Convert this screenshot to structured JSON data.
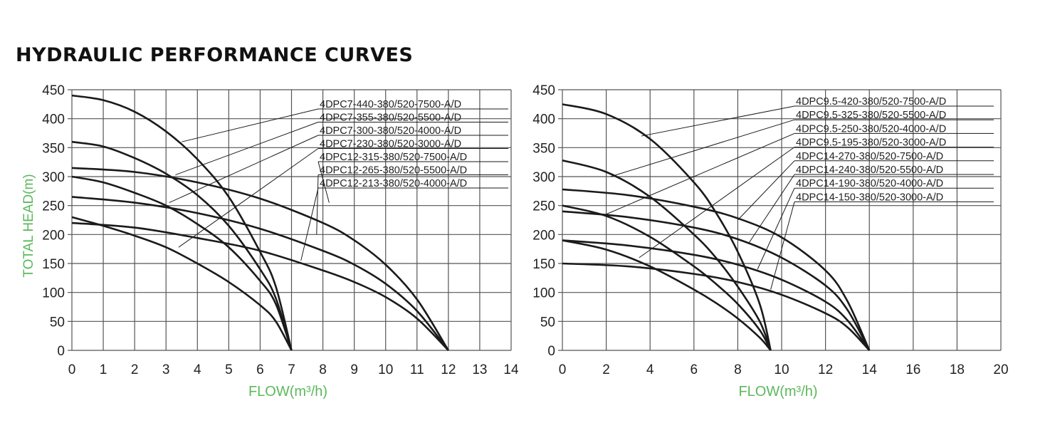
{
  "page": {
    "title": "HYDRAULIC PERFORMANCE CURVES"
  },
  "colors": {
    "axis_label": "#5cb85c",
    "grid": "#555555",
    "curve": "#1a1a1a",
    "text": "#222222"
  },
  "chart_data": [
    {
      "type": "line",
      "xlabel": "FLOW(m³/h)",
      "ylabel": "TOTAL HEAD(m)",
      "xlim": [
        0,
        14
      ],
      "ylim": [
        0,
        450
      ],
      "xticks": [
        0,
        1,
        2,
        3,
        4,
        5,
        6,
        7,
        8,
        9,
        10,
        11,
        12,
        13,
        14
      ],
      "yticks": [
        0,
        50,
        100,
        150,
        200,
        250,
        300,
        350,
        400,
        450
      ],
      "grid": true,
      "legend_position": "top-right",
      "series": [
        {
          "name": "4DPC7-440-380/520-7500-A/D",
          "shutoff_head": 440,
          "max_flow": 7,
          "points": [
            [
              0,
              440
            ],
            [
              1,
              432
            ],
            [
              2,
              412
            ],
            [
              3,
              378
            ],
            [
              4,
              330
            ],
            [
              5,
              265
            ],
            [
              6,
              170
            ],
            [
              6.5,
              110
            ],
            [
              7,
              0
            ]
          ],
          "pointer": [
            3.5,
            360
          ]
        },
        {
          "name": "4DPC7-355-380/520-5500-A/D",
          "shutoff_head": 360,
          "max_flow": 7,
          "points": [
            [
              0,
              360
            ],
            [
              1,
              352
            ],
            [
              2,
              332
            ],
            [
              3,
              305
            ],
            [
              4,
              268
            ],
            [
              5,
              215
            ],
            [
              6,
              140
            ],
            [
              6.5,
              90
            ],
            [
              7,
              0
            ]
          ],
          "pointer": [
            3.3,
            303
          ]
        },
        {
          "name": "4DPC7-300-380/520-4000-A/D",
          "shutoff_head": 300,
          "max_flow": 7,
          "points": [
            [
              0,
              300
            ],
            [
              1,
              290
            ],
            [
              2,
              272
            ],
            [
              3,
              250
            ],
            [
              4,
              218
            ],
            [
              5,
              178
            ],
            [
              6,
              120
            ],
            [
              6.5,
              80
            ],
            [
              7,
              0
            ]
          ],
          "pointer": [
            3.1,
            255
          ]
        },
        {
          "name": "4DPC7-230-380/520-3000-A/D",
          "shutoff_head": 230,
          "max_flow": 7,
          "points": [
            [
              0,
              230
            ],
            [
              1,
              215
            ],
            [
              2,
              198
            ],
            [
              3,
              178
            ],
            [
              4,
              150
            ],
            [
              5,
              118
            ],
            [
              6,
              78
            ],
            [
              6.5,
              50
            ],
            [
              7,
              0
            ]
          ],
          "pointer": [
            3.4,
            178
          ]
        },
        {
          "name": "4DPC12-315-380/520-7500-A/D",
          "shutoff_head": 315,
          "max_flow": 12,
          "points": [
            [
              0,
              315
            ],
            [
              2,
              308
            ],
            [
              4,
              290
            ],
            [
              6,
              262
            ],
            [
              8,
              220
            ],
            [
              9,
              190
            ],
            [
              10,
              148
            ],
            [
              11,
              88
            ],
            [
              12,
              0
            ]
          ],
          "pointer": [
            8.2,
            255
          ]
        },
        {
          "name": "4DPC12-265-380/520-5500-A/D",
          "shutoff_head": 265,
          "max_flow": 12,
          "points": [
            [
              0,
              265
            ],
            [
              2,
              255
            ],
            [
              4,
              237
            ],
            [
              6,
              210
            ],
            [
              8,
              172
            ],
            [
              9,
              148
            ],
            [
              10,
              115
            ],
            [
              11,
              68
            ],
            [
              12,
              0
            ]
          ],
          "pointer": [
            7.8,
            200
          ]
        },
        {
          "name": "4DPC12-213-380/520-4000-A/D",
          "shutoff_head": 220,
          "max_flow": 12,
          "points": [
            [
              0,
              220
            ],
            [
              2,
              212
            ],
            [
              4,
              194
            ],
            [
              6,
              172
            ],
            [
              8,
              138
            ],
            [
              9,
              118
            ],
            [
              10,
              92
            ],
            [
              11,
              55
            ],
            [
              12,
              0
            ]
          ],
          "pointer": [
            7.3,
            155
          ]
        }
      ]
    },
    {
      "type": "line",
      "xlabel": "FLOW(m³/h)",
      "ylabel": "",
      "xlim": [
        0,
        20
      ],
      "ylim": [
        0,
        450
      ],
      "xticks": [
        0,
        2,
        4,
        6,
        8,
        10,
        12,
        14,
        16,
        18,
        20
      ],
      "yticks": [
        0,
        50,
        100,
        150,
        200,
        250,
        300,
        350,
        400,
        450
      ],
      "grid": true,
      "legend_position": "top-right",
      "series": [
        {
          "name": "4DPC9.5-420-380/520-7500-A/D",
          "shutoff_head": 425,
          "max_flow": 9.5,
          "points": [
            [
              0,
              425
            ],
            [
              2,
              408
            ],
            [
              4,
              365
            ],
            [
              6,
              290
            ],
            [
              7,
              238
            ],
            [
              8,
              170
            ],
            [
              9,
              80
            ],
            [
              9.5,
              0
            ]
          ],
          "pointer": [
            3.6,
            370
          ]
        },
        {
          "name": "4DPC9.5-325-380/520-5500-A/D",
          "shutoff_head": 328,
          "max_flow": 9.5,
          "points": [
            [
              0,
              328
            ],
            [
              2,
              308
            ],
            [
              4,
              265
            ],
            [
              6,
              200
            ],
            [
              7,
              160
            ],
            [
              8,
              110
            ],
            [
              9,
              50
            ],
            [
              9.5,
              0
            ]
          ],
          "pointer": [
            2.2,
            300
          ]
        },
        {
          "name": "4DPC9.5-250-380/520-4000-A/D",
          "shutoff_head": 250,
          "max_flow": 9.5,
          "points": [
            [
              0,
              250
            ],
            [
              2,
              232
            ],
            [
              4,
              196
            ],
            [
              6,
              145
            ],
            [
              7,
              115
            ],
            [
              8,
              80
            ],
            [
              9,
              35
            ],
            [
              9.5,
              0
            ]
          ],
          "pointer": [
            2,
            235
          ]
        },
        {
          "name": "4DPC9.5-195-380/520-3000-A/D",
          "shutoff_head": 190,
          "max_flow": 9.5,
          "points": [
            [
              0,
              190
            ],
            [
              2,
              174
            ],
            [
              4,
              145
            ],
            [
              6,
              105
            ],
            [
              7,
              82
            ],
            [
              8,
              55
            ],
            [
              9,
              22
            ],
            [
              9.5,
              0
            ]
          ],
          "pointer": [
            3.5,
            160
          ]
        },
        {
          "name": "4DPC14-270-380/520-7500-A/D",
          "shutoff_head": 278,
          "max_flow": 14,
          "points": [
            [
              0,
              278
            ],
            [
              3,
              268
            ],
            [
              6,
              248
            ],
            [
              8,
              228
            ],
            [
              10,
              195
            ],
            [
              12,
              138
            ],
            [
              13,
              85
            ],
            [
              14,
              0
            ]
          ],
          "pointer": [
            8,
            225
          ]
        },
        {
          "name": "4DPC14-240-380/520-5500-A/D",
          "shutoff_head": 240,
          "max_flow": 14,
          "points": [
            [
              0,
              240
            ],
            [
              3,
              230
            ],
            [
              6,
              212
            ],
            [
              8,
              192
            ],
            [
              10,
              160
            ],
            [
              12,
              112
            ],
            [
              13,
              70
            ],
            [
              14,
              0
            ]
          ],
          "pointer": [
            8.5,
            185
          ]
        },
        {
          "name": "4DPC14-190-380/520-4000-A/D",
          "shutoff_head": 190,
          "max_flow": 14,
          "points": [
            [
              0,
              190
            ],
            [
              3,
              181
            ],
            [
              6,
              165
            ],
            [
              8,
              148
            ],
            [
              10,
              122
            ],
            [
              12,
              84
            ],
            [
              13,
              52
            ],
            [
              14,
              0
            ]
          ],
          "pointer": [
            8.9,
            140
          ]
        },
        {
          "name": "4DPC14-150-380/520-3000-A/D",
          "shutoff_head": 150,
          "max_flow": 14,
          "points": [
            [
              0,
              150
            ],
            [
              3,
              145
            ],
            [
              6,
              132
            ],
            [
              8,
              118
            ],
            [
              10,
              96
            ],
            [
              12,
              64
            ],
            [
              13,
              40
            ],
            [
              14,
              0
            ]
          ],
          "pointer": [
            9.5,
            105
          ]
        }
      ]
    }
  ]
}
